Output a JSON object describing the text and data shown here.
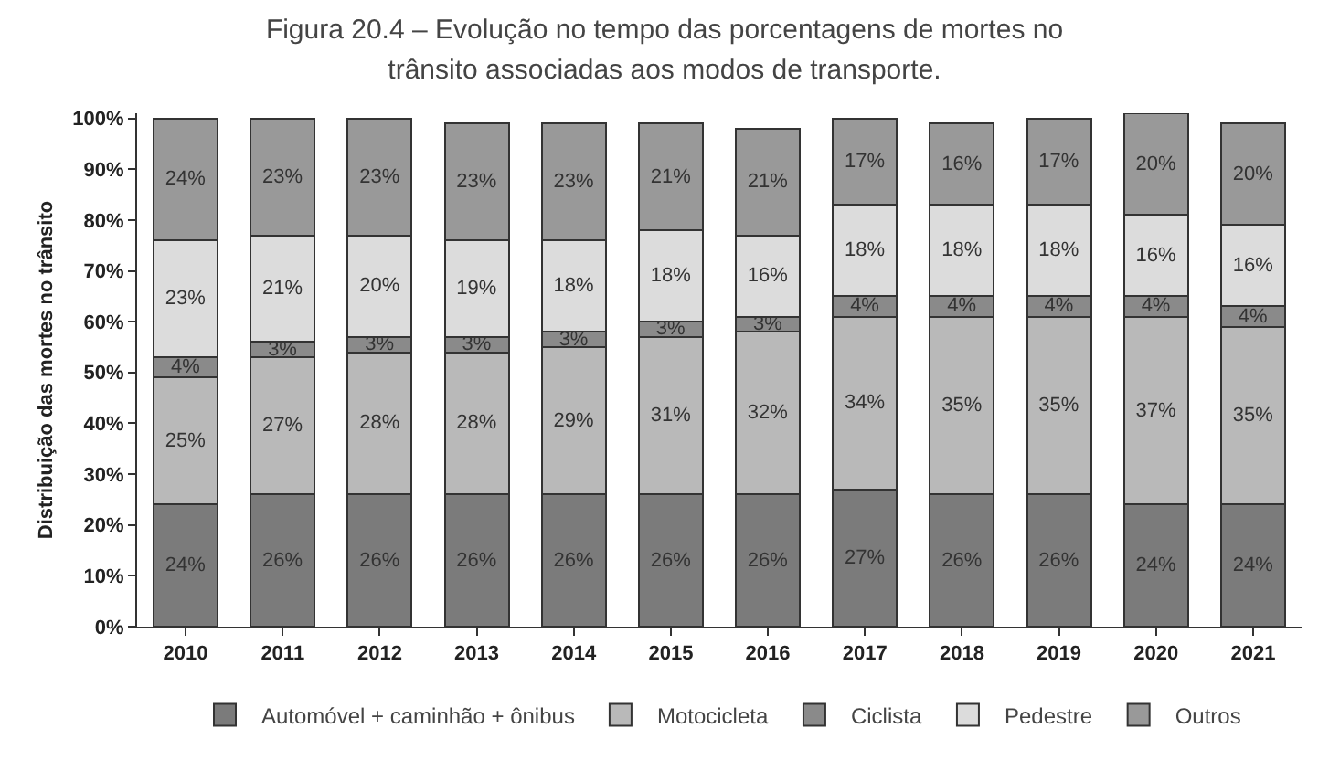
{
  "chart_data": {
    "type": "bar",
    "stacked": true,
    "title": "Figura 20.4 – Evolução no tempo das porcentagens de mortes no trânsito associadas aos modos de transporte.",
    "ylabel": "Distribuição das mortes no trânsito",
    "categories": [
      "2010",
      "2011",
      "2012",
      "2013",
      "2014",
      "2015",
      "2016",
      "2017",
      "2018",
      "2019",
      "2020",
      "2021"
    ],
    "series": [
      {
        "name": "Automóvel + caminhão + ônibus",
        "color": "#7b7b7b",
        "values": [
          24,
          26,
          26,
          26,
          26,
          26,
          26,
          27,
          26,
          26,
          24,
          24
        ],
        "value_labels": [
          "24%",
          "26%",
          "26%",
          "26%",
          "26%",
          "26%",
          "26%",
          "27%",
          "26%",
          "26%",
          "24%",
          "24%"
        ]
      },
      {
        "name": "Motocicleta",
        "color": "#b9b9b9",
        "values": [
          25,
          27,
          28,
          28,
          29,
          31,
          32,
          34,
          35,
          35,
          37,
          35
        ],
        "value_labels": [
          "25%",
          "27%",
          "28%",
          "28%",
          "29%",
          "31%",
          "32%",
          "34%",
          "35%",
          "35%",
          "37%",
          "35%"
        ]
      },
      {
        "name": "Ciclista",
        "color": "#8a8a8a",
        "values": [
          4,
          3,
          3,
          3,
          3,
          3,
          3,
          4,
          4,
          4,
          4,
          4
        ],
        "value_labels": [
          "4%",
          "3%",
          "3%",
          "3%",
          "3%",
          "3%",
          "3%",
          "4%",
          "4%",
          "4%",
          "4%",
          "4%"
        ]
      },
      {
        "name": "Pedestre",
        "color": "#dcdcdc",
        "values": [
          23,
          21,
          20,
          19,
          18,
          18,
          16,
          18,
          18,
          18,
          16,
          16
        ],
        "value_labels": [
          "23%",
          "21%",
          "20%",
          "19%",
          "18%",
          "18%",
          "16%",
          "18%",
          "18%",
          "18%",
          "16%",
          "16%"
        ]
      },
      {
        "name": "Outros",
        "color": "#999999",
        "values": [
          24,
          23,
          23,
          23,
          23,
          21,
          21,
          17,
          16,
          17,
          20,
          20
        ],
        "value_labels": [
          "24%",
          "23%",
          "23%",
          "23%",
          "23%",
          "21%",
          "21%",
          "17%",
          "16%",
          "17%",
          "20%",
          "20%"
        ]
      }
    ],
    "ylim": [
      0,
      101
    ],
    "yticks": [
      {
        "value": 0,
        "label": "0%"
      },
      {
        "value": 10,
        "label": "10%"
      },
      {
        "value": 20,
        "label": "20%"
      },
      {
        "value": 30,
        "label": "30%"
      },
      {
        "value": 40,
        "label": "40%"
      },
      {
        "value": 50,
        "label": "50%"
      },
      {
        "value": 60,
        "label": "60%"
      },
      {
        "value": 70,
        "label": "70%"
      },
      {
        "value": 80,
        "label": "80%"
      },
      {
        "value": 90,
        "label": "90%"
      },
      {
        "value": 100,
        "label": "100%"
      }
    ],
    "legend": "bottom",
    "grid": false
  }
}
